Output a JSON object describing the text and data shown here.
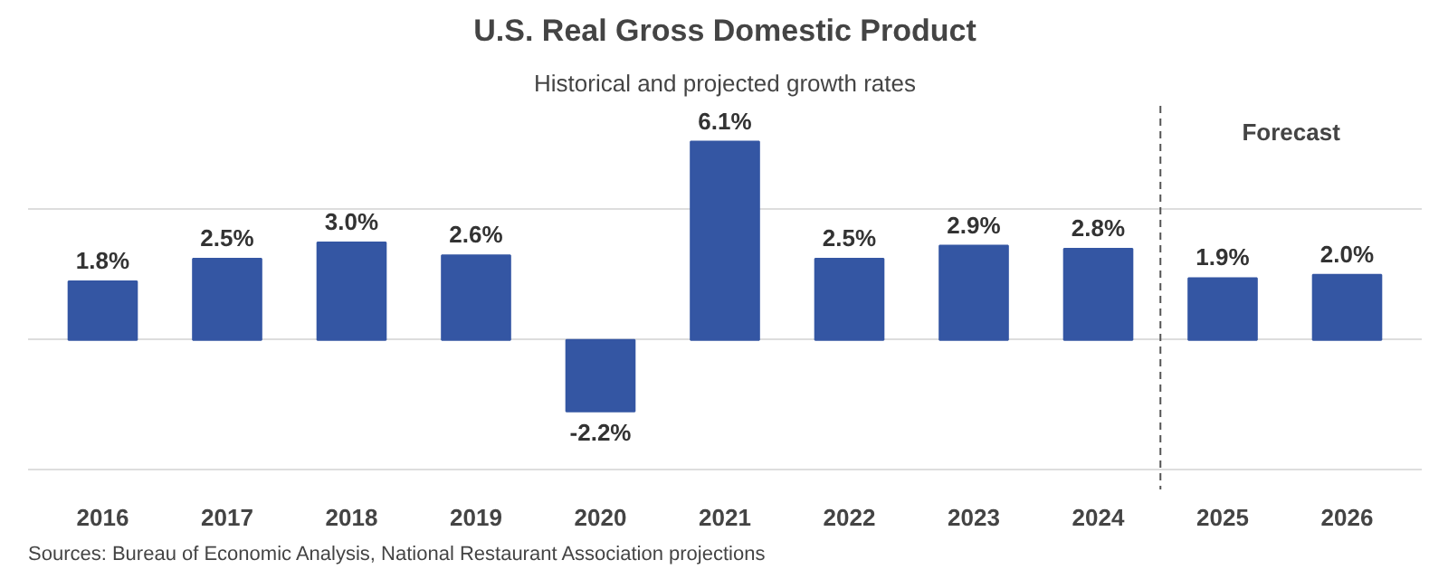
{
  "chart_data": {
    "type": "bar",
    "title": "U.S. Real Gross Domestic Product",
    "subtitle": "Historical and projected growth rates",
    "x": [
      2016,
      2017,
      2018,
      2019,
      2020,
      2021,
      2022,
      2023,
      2024,
      2025,
      2026
    ],
    "values": [
      1.8,
      2.5,
      3.0,
      2.6,
      -2.2,
      6.1,
      2.5,
      2.9,
      2.8,
      1.9,
      2.0
    ],
    "color": "#3456a3",
    "value_labels": [
      "1.8%",
      "2.5%",
      "3.0%",
      "2.6%",
      "-2.2%",
      "6.1%",
      "2.5%",
      "2.9%",
      "2.8%",
      "1.9%",
      "2.0%"
    ],
    "xlim": [
      2015.4,
      2026.6
    ],
    "xticks": [
      2016,
      2017,
      2018,
      2019,
      2020,
      2021,
      2022,
      2023,
      2024,
      2025,
      2026
    ],
    "ylim": [
      -4.6,
      7.2
    ],
    "yticks": [
      {
        "value": -4,
        "label": null
      },
      {
        "value": 0,
        "label": null
      },
      {
        "value": 4,
        "label": null
      }
    ],
    "grid": "y",
    "tick_labels": "x",
    "ref_lines": [
      {
        "axis": "x",
        "value": 2024.5,
        "label": "Forecast",
        "color": "#555555"
      }
    ],
    "annotations": [
      "Sources: Bureau of Economic Analysis, National Restaurant Association projections"
    ]
  }
}
